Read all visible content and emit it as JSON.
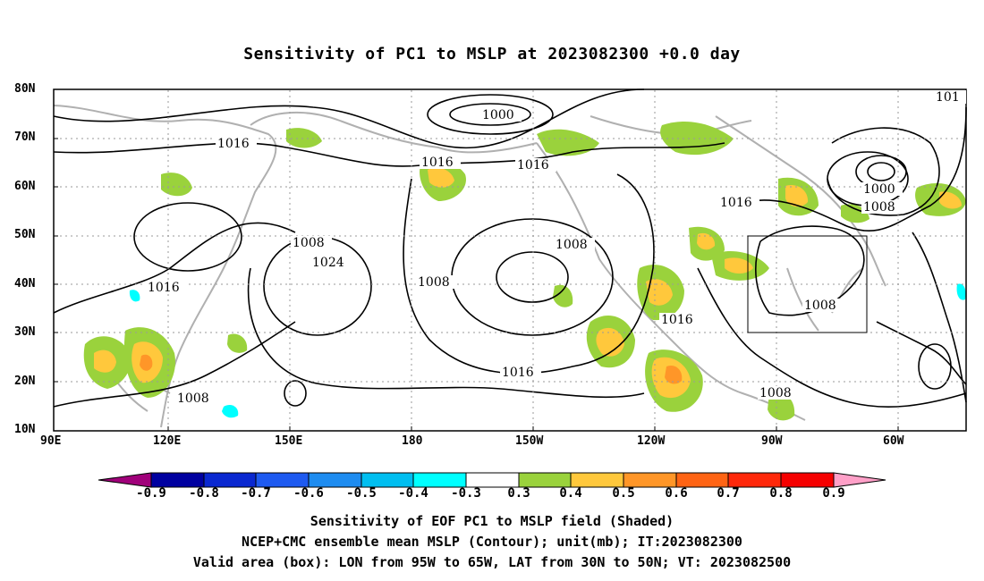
{
  "title": "Sensitivity of PC1 to MSLP at 2023082300 +0.0 day",
  "y_axis_labels": [
    "80N",
    "70N",
    "60N",
    "50N",
    "40N",
    "30N",
    "20N",
    "10N"
  ],
  "x_axis_labels": [
    "90E",
    "120E",
    "150E",
    "180",
    "150W",
    "120W",
    "90W",
    "60W"
  ],
  "contour_labels": [
    "1000",
    "1000",
    "101",
    "1016",
    "1016",
    "1016",
    "1016",
    "1008",
    "1008",
    "1008",
    "1024",
    "1016",
    "1008",
    "1008",
    "1016",
    "1016",
    "1008",
    "1008"
  ],
  "colorbar": {
    "ticks": [
      "-0.9",
      "-0.8",
      "-0.7",
      "-0.6",
      "-0.5",
      "-0.4",
      "-0.3",
      "0.3",
      "0.4",
      "0.5",
      "0.6",
      "0.7",
      "0.8",
      "0.9"
    ],
    "colors": [
      "#a0007a",
      "#0000a0",
      "#0a28d0",
      "#1e5af0",
      "#1e8cf0",
      "#00bef0",
      "#00ffff",
      "#ffffff",
      "#9ad23c",
      "#ffc83c",
      "#ff9628",
      "#ff6414",
      "#ff280a",
      "#f50000",
      "#ffa0c8"
    ]
  },
  "valid_box": {
    "lon_from": "95W",
    "lon_to": "65W",
    "lat_from": "30N",
    "lat_to": "50N"
  },
  "captions": [
    "Sensitivity of EOF PC1 to MSLP field (Shaded)",
    "NCEP+CMC ensemble mean MSLP (Contour); unit(mb); IT:2023082300",
    "Valid area (box): LON from 95W to 65W, LAT from 30N to 50N; VT: 2023082500"
  ]
}
